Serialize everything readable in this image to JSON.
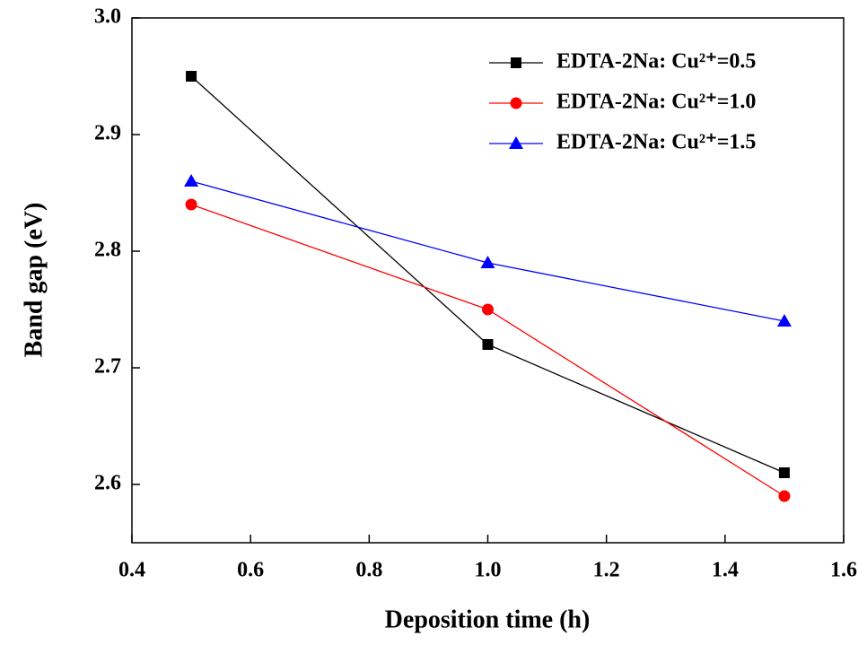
{
  "chart_data": {
    "type": "line",
    "x_label": "Deposition time (h)",
    "y_label": "Band gap (eV)",
    "x": [
      0.5,
      1.0,
      1.5
    ],
    "series": [
      {
        "name": "EDTA-2Na: Cu²⁺=0.5",
        "color": "#000000",
        "marker": "square",
        "values": [
          2.95,
          2.72,
          2.61
        ]
      },
      {
        "name": "EDTA-2Na: Cu²⁺=1.0",
        "color": "#ff0000",
        "marker": "circle",
        "values": [
          2.84,
          2.75,
          2.59
        ]
      },
      {
        "name": "EDTA-2Na: Cu²⁺=1.5",
        "color": "#0000ff",
        "marker": "triangle",
        "values": [
          2.86,
          2.79,
          2.74
        ]
      }
    ],
    "xlim": [
      0.4,
      1.6
    ],
    "xticks": [
      0.4,
      0.6,
      0.8,
      {
        "value": 1,
        "label": "1.0"
      },
      1.2,
      1.4,
      1.6
    ],
    "ylim": [
      2.55,
      3.0
    ],
    "yticks": [
      2.6,
      2.7,
      2.8,
      2.9,
      {
        "value": 3,
        "label": "3.0"
      }
    ],
    "legend": "upper right"
  }
}
